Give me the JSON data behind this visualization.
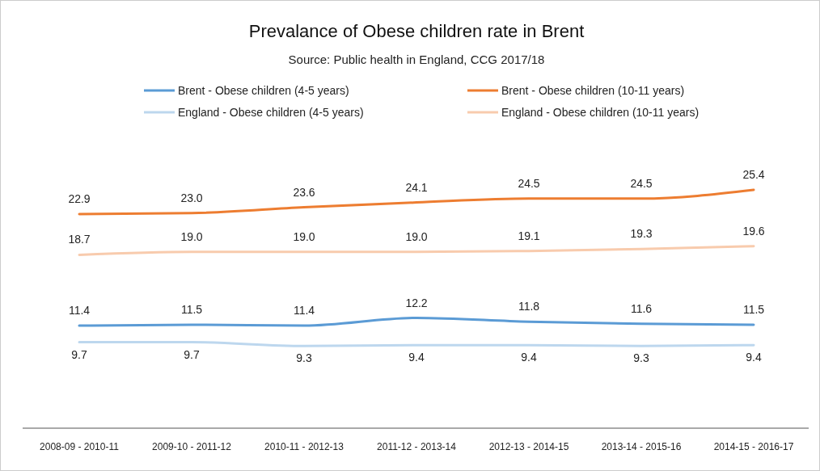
{
  "chart_data": {
    "type": "line",
    "title": "Prevalance of Obese children rate in Brent",
    "subtitle": "Source: Public health in England, CCG 2017/18",
    "categories": [
      "2008-09 - 2010-11",
      "2009-10 - 2011-12",
      "2010-11 - 2012-13",
      "2011-12 - 2013-14",
      "2012-13 - 2014-15",
      "2013-14 - 2015-16",
      "2014-15 - 2016-17"
    ],
    "series": [
      {
        "name": "Brent - Obese children (4-5 years)",
        "color": "#5b9bd5",
        "values": [
          11.4,
          11.5,
          11.4,
          12.2,
          11.8,
          11.6,
          11.5
        ],
        "value_labels": [
          "11.4",
          "11.5",
          "11.4",
          "12.2",
          "11.8",
          "11.6",
          "11.5"
        ]
      },
      {
        "name": "Brent - Obese children (10-11 years)",
        "color": "#ed7d31",
        "values": [
          22.9,
          23.0,
          23.6,
          24.1,
          24.5,
          24.5,
          25.4
        ],
        "value_labels": [
          "22.9",
          "23.0",
          "23.6",
          "24.1",
          "24.5",
          "24.5",
          "25.4"
        ]
      },
      {
        "name": "England - Obese children (4-5 years)",
        "color": "#bdd7ee",
        "values": [
          9.7,
          9.7,
          9.3,
          9.4,
          9.4,
          9.3,
          9.4
        ],
        "value_labels": [
          "9.7",
          "9.7",
          "9.3",
          "9.4",
          "9.4",
          "9.3",
          "9.4"
        ]
      },
      {
        "name": "England - Obese children (10-11 years)",
        "color": "#f8cbad",
        "values": [
          18.7,
          19.0,
          19.0,
          19.0,
          19.1,
          19.3,
          19.6
        ],
        "value_labels": [
          "18.7",
          "19.0",
          "19.0",
          "19.0",
          "19.1",
          "19.3",
          "19.6"
        ]
      }
    ],
    "legend": "top",
    "marker": "none",
    "line_style": "solid"
  }
}
